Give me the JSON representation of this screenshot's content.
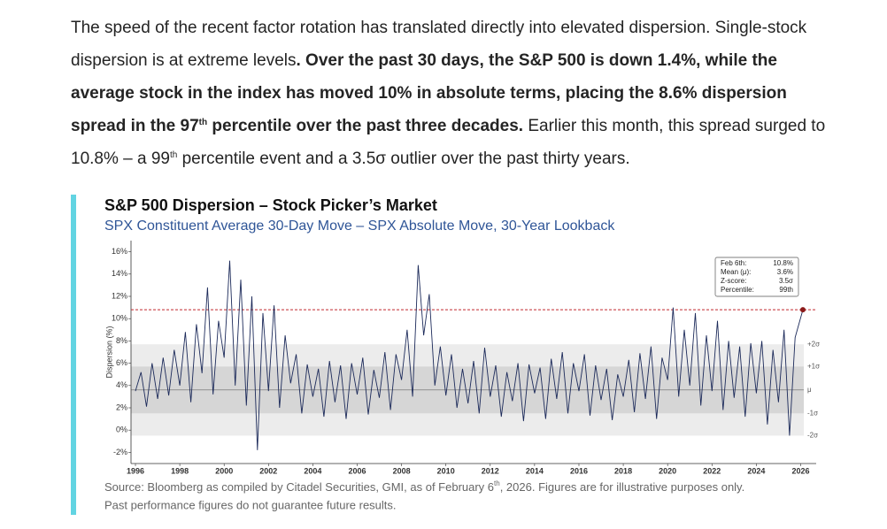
{
  "paragraph": {
    "part1": "The speed of the recent factor rotation has translated directly into elevated dispersion. Single-stock dispersion is at extreme levels",
    "part2": ". Over the past 30 days, the S&P 500 is down 1.4%, while the average stock in the index has moved 10% in absolute terms, placing the 8.6% dispersion spread in the 97",
    "sup1": "th",
    "part3": " percentile over the past three decades.",
    "part4": " Earlier this month, this spread surged to 10.8% – a 99",
    "sup2": "th",
    "part5": " percentile event and a 3.5σ outlier over the past thirty years."
  },
  "chart_data": {
    "type": "line",
    "title": "S&P 500 Dispersion – Stock Picker’s Market",
    "subtitle": "SPX Constituent Average 30-Day Move – SPX Absolute Move, 30-Year Lookback",
    "y_label": "Dispersion (%)",
    "xlim": [
      1995.8,
      2026.7
    ],
    "xticks": [
      1996,
      1998,
      2000,
      2002,
      2004,
      2006,
      2008,
      2010,
      2012,
      2014,
      2016,
      2018,
      2020,
      2022,
      2024,
      2026
    ],
    "ylim": [
      -3,
      17
    ],
    "yticks": [
      {
        "value": -2,
        "label": "-2%"
      },
      {
        "value": 0,
        "label": "0%"
      },
      {
        "value": 2,
        "label": "2%"
      },
      {
        "value": 4,
        "label": "4%"
      },
      {
        "value": 6,
        "label": "6%"
      },
      {
        "value": 8,
        "label": "8%"
      },
      {
        "value": 10,
        "label": "10%"
      },
      {
        "value": 12,
        "label": "12%"
      },
      {
        "value": 14,
        "label": "14%"
      },
      {
        "value": 16,
        "label": "16%"
      }
    ],
    "x": [
      1996,
      1996.25,
      1996.5,
      1996.75,
      1997,
      1997.25,
      1997.5,
      1997.75,
      1998,
      1998.25,
      1998.5,
      1998.75,
      1999,
      1999.25,
      1999.5,
      1999.75,
      2000,
      2000.25,
      2000.5,
      2000.75,
      2001,
      2001.25,
      2001.5,
      2001.75,
      2002,
      2002.25,
      2002.5,
      2002.75,
      2003,
      2003.25,
      2003.5,
      2003.75,
      2004,
      2004.25,
      2004.5,
      2004.75,
      2005,
      2005.25,
      2005.5,
      2005.75,
      2006,
      2006.25,
      2006.5,
      2006.75,
      2007,
      2007.25,
      2007.5,
      2007.75,
      2008,
      2008.25,
      2008.5,
      2008.75,
      2009,
      2009.25,
      2009.5,
      2009.75,
      2010,
      2010.25,
      2010.5,
      2010.75,
      2011,
      2011.25,
      2011.5,
      2011.75,
      2012,
      2012.25,
      2012.5,
      2012.75,
      2013,
      2013.25,
      2013.5,
      2013.75,
      2014,
      2014.25,
      2014.5,
      2014.75,
      2015,
      2015.25,
      2015.5,
      2015.75,
      2016,
      2016.25,
      2016.5,
      2016.75,
      2017,
      2017.25,
      2017.5,
      2017.75,
      2018,
      2018.25,
      2018.5,
      2018.75,
      2019,
      2019.25,
      2019.5,
      2019.75,
      2020,
      2020.25,
      2020.5,
      2020.75,
      2021,
      2021.25,
      2021.5,
      2021.75,
      2022,
      2022.25,
      2022.5,
      2022.75,
      2023,
      2023.25,
      2023.5,
      2023.75,
      2024,
      2024.25,
      2024.5,
      2024.75,
      2025,
      2025.25,
      2025.5,
      2025.75,
      2026.1
    ],
    "series": [
      {
        "name": "Dispersion",
        "color": "#1c2a5a",
        "values": [
          3.5,
          5.2,
          2.1,
          6.0,
          2.8,
          6.5,
          3.1,
          7.2,
          4.0,
          8.8,
          2.5,
          9.5,
          5.1,
          12.8,
          3.2,
          9.8,
          6.5,
          15.2,
          4.0,
          13.5,
          2.2,
          12.0,
          -1.8,
          10.5,
          3.5,
          11.2,
          2.0,
          8.5,
          4.2,
          6.8,
          1.5,
          5.9,
          3.0,
          5.5,
          1.2,
          6.2,
          2.5,
          5.8,
          1.0,
          6.0,
          3.2,
          6.5,
          1.4,
          5.4,
          2.9,
          7.0,
          1.8,
          6.8,
          4.5,
          9.0,
          3.0,
          14.8,
          8.5,
          12.2,
          4.0,
          7.5,
          3.1,
          6.8,
          2.0,
          5.5,
          2.4,
          6.2,
          1.5,
          7.4,
          3.0,
          5.8,
          1.2,
          5.2,
          2.6,
          6.0,
          0.8,
          5.9,
          3.3,
          5.6,
          1.0,
          6.4,
          2.8,
          7.0,
          1.5,
          6.0,
          3.5,
          6.8,
          1.3,
          5.8,
          2.7,
          5.5,
          0.9,
          5.0,
          3.0,
          6.3,
          1.6,
          6.9,
          2.8,
          7.5,
          1.0,
          6.5,
          4.5,
          11.0,
          3.0,
          9.0,
          4.0,
          10.5,
          2.2,
          8.5,
          3.5,
          9.8,
          1.8,
          8.0,
          2.9,
          7.5,
          1.2,
          7.8,
          3.3,
          8.0,
          0.5,
          7.2,
          2.5,
          9.0,
          -0.5,
          8.3,
          10.8
        ]
      }
    ],
    "sigma_bands": [
      {
        "label": "+2σ",
        "value": 7.7
      },
      {
        "label": "+1σ",
        "value": 5.7
      },
      {
        "label": "μ",
        "value": 3.6
      },
      {
        "label": "-1σ",
        "value": 1.5
      },
      {
        "label": "-2σ",
        "value": -0.5
      }
    ],
    "reference_line": {
      "value": 10.8,
      "color": "#c0282d"
    },
    "info_box": [
      {
        "label": "Feb 6th:",
        "value": "10.8%"
      },
      {
        "label": "Mean (μ):",
        "value": "3.6%"
      },
      {
        "label": "Z-score:",
        "value": "3.5σ"
      },
      {
        "label": "Percentile:",
        "value": "99th"
      }
    ]
  },
  "source": {
    "line1": "Source: Bloomberg as compiled by Citadel Securities, GMI, as of February 6",
    "sup": "th",
    "line1b": ", 2026. Figures are for illustrative purposes only.",
    "line2": "Past performance figures do not guarantee future results."
  }
}
